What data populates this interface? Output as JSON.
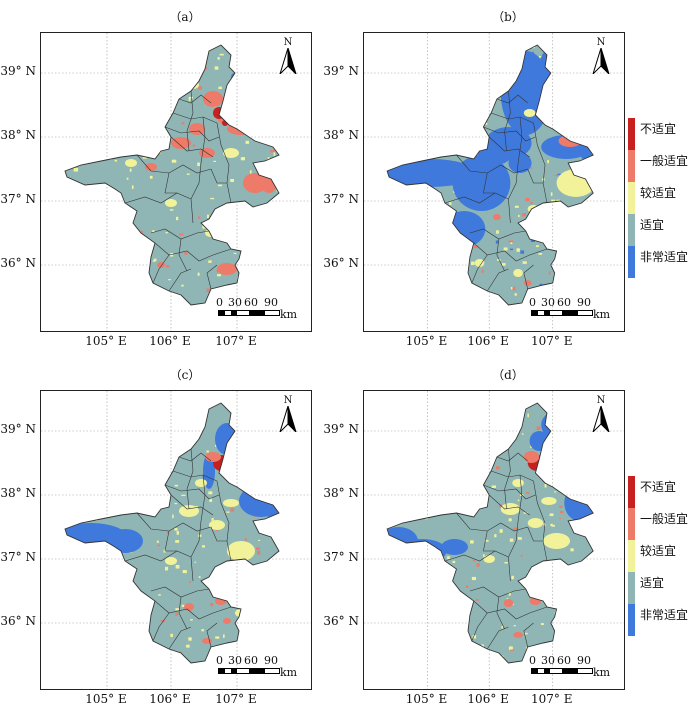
{
  "panels": [
    {
      "label": "（a）"
    },
    {
      "label": "（b）"
    },
    {
      "label": "（c）"
    },
    {
      "label": "（d）"
    }
  ],
  "axes": {
    "lat_labels": [
      "39° N",
      "38° N",
      "37° N",
      "36° N"
    ],
    "lon_labels": [
      "105° E",
      "106° E",
      "107° E"
    ]
  },
  "north_label": "N",
  "scale": {
    "ticks": [
      "0",
      "30",
      "60",
      "90"
    ],
    "unit": "km"
  },
  "legend": [
    {
      "label": "不适宜",
      "color": "#c8201e"
    },
    {
      "label": "一般适宜",
      "color": "#ee7a6a"
    },
    {
      "label": "较适宜",
      "color": "#f2f29a"
    },
    {
      "label": "适宜",
      "color": "#8fb6b5"
    },
    {
      "label": "非常适宜",
      "color": "#3f79dc"
    }
  ]
}
